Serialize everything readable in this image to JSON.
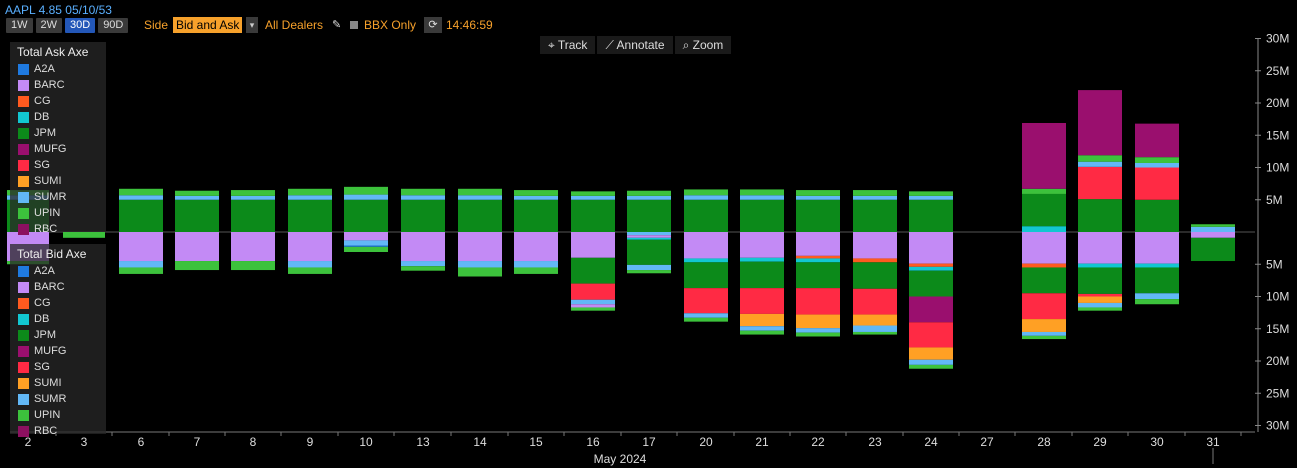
{
  "header": {
    "security": "AAPL 4.85 05/10/53",
    "periods": [
      "1W",
      "2W",
      "30D",
      "90D"
    ],
    "active_period": "30D",
    "side_label": "Side",
    "side_value": "Bid and Ask",
    "dealers_label": "All Dealers",
    "bbx_label": "BBX Only",
    "time": "14:46:59"
  },
  "toolbar": {
    "track": "Track",
    "annotate": "Annotate",
    "zoom": "Zoom"
  },
  "icons": {
    "pencil": "pencil-icon",
    "refresh": "refresh-icon",
    "track": "crosshair-icon",
    "annotate": "pencil-icon",
    "zoom": "magnifier-icon",
    "dropdown": "chevron-down-icon"
  },
  "colors": {
    "A2A": "#1f7ae0",
    "BARC": "#c38af5",
    "CG": "#ff5a1f",
    "DB": "#12c7d1",
    "JPM": "#0c8a1a",
    "MUFG": "#9a0f6e",
    "SG": "#ff2a44",
    "SUMI": "#ffa024",
    "SUMR": "#62b8f6",
    "UPIN": "#3cc23c",
    "RBC": "#8c1060"
  },
  "chart_data": {
    "type": "bar",
    "stacked": true,
    "xlabel": "May 2024",
    "x_ticks": [
      "2",
      "3",
      "6",
      "7",
      "8",
      "9",
      "10",
      "13",
      "14",
      "15",
      "16",
      "17",
      "20",
      "21",
      "22",
      "23",
      "24",
      "27",
      "28",
      "29",
      "30",
      "31"
    ],
    "y_ticks": [
      "30M",
      "25M",
      "20M",
      "15M",
      "10M",
      "5M",
      "5M",
      "10M",
      "15M",
      "20M",
      "25M",
      "30M"
    ],
    "ylim": [
      -30,
      30
    ],
    "units": "M",
    "legend_top": {
      "title": "Total Ask Axe",
      "entries": [
        "A2A",
        "BARC",
        "CG",
        "DB",
        "JPM",
        "MUFG",
        "SG",
        "SUMI",
        "SUMR",
        "UPIN",
        "RBC"
      ]
    },
    "legend_bottom": {
      "title": "Total Bid Axe",
      "entries": [
        "A2A",
        "BARC",
        "CG",
        "DB",
        "JPM",
        "MUFG",
        "SG",
        "SUMI",
        "SUMR",
        "UPIN",
        "RBC"
      ]
    },
    "ask_series": [
      {
        "date": "2",
        "segments": [
          [
            "JPM",
            5.0
          ],
          [
            "SUMR",
            0.7
          ],
          [
            "UPIN",
            0.8
          ]
        ]
      },
      {
        "date": "3",
        "segments": []
      },
      {
        "date": "6",
        "segments": [
          [
            "JPM",
            5.0
          ],
          [
            "SUMR",
            0.7
          ],
          [
            "UPIN",
            1.0
          ]
        ]
      },
      {
        "date": "7",
        "segments": [
          [
            "JPM",
            5.0
          ],
          [
            "SUMR",
            0.6
          ],
          [
            "UPIN",
            0.8
          ]
        ]
      },
      {
        "date": "8",
        "segments": [
          [
            "JPM",
            5.0
          ],
          [
            "SUMR",
            0.6
          ],
          [
            "UPIN",
            0.9
          ]
        ]
      },
      {
        "date": "9",
        "segments": [
          [
            "JPM",
            5.0
          ],
          [
            "SUMR",
            0.7
          ],
          [
            "UPIN",
            1.0
          ]
        ]
      },
      {
        "date": "10",
        "segments": [
          [
            "JPM",
            5.0
          ],
          [
            "SUMR",
            0.8
          ],
          [
            "UPIN",
            1.2
          ]
        ]
      },
      {
        "date": "13",
        "segments": [
          [
            "JPM",
            5.0
          ],
          [
            "SUMR",
            0.7
          ],
          [
            "UPIN",
            1.0
          ]
        ]
      },
      {
        "date": "14",
        "segments": [
          [
            "JPM",
            5.0
          ],
          [
            "SUMR",
            0.7
          ],
          [
            "UPIN",
            1.0
          ]
        ]
      },
      {
        "date": "15",
        "segments": [
          [
            "JPM",
            5.0
          ],
          [
            "SUMR",
            0.6
          ],
          [
            "UPIN",
            0.9
          ]
        ]
      },
      {
        "date": "16",
        "segments": [
          [
            "JPM",
            5.0
          ],
          [
            "SUMR",
            0.6
          ],
          [
            "UPIN",
            0.7
          ]
        ]
      },
      {
        "date": "17",
        "segments": [
          [
            "JPM",
            5.0
          ],
          [
            "SUMR",
            0.6
          ],
          [
            "UPIN",
            0.8
          ]
        ]
      },
      {
        "date": "20",
        "segments": [
          [
            "JPM",
            5.0
          ],
          [
            "SUMR",
            0.7
          ],
          [
            "UPIN",
            0.9
          ]
        ]
      },
      {
        "date": "21",
        "segments": [
          [
            "JPM",
            5.0
          ],
          [
            "SUMR",
            0.7
          ],
          [
            "UPIN",
            0.9
          ]
        ]
      },
      {
        "date": "22",
        "segments": [
          [
            "JPM",
            5.0
          ],
          [
            "SUMR",
            0.6
          ],
          [
            "UPIN",
            0.9
          ]
        ]
      },
      {
        "date": "23",
        "segments": [
          [
            "JPM",
            5.0
          ],
          [
            "SUMR",
            0.6
          ],
          [
            "UPIN",
            0.9
          ]
        ]
      },
      {
        "date": "24",
        "segments": [
          [
            "JPM",
            5.0
          ],
          [
            "SUMR",
            0.6
          ],
          [
            "UPIN",
            0.7
          ]
        ]
      },
      {
        "date": "27",
        "segments": []
      },
      {
        "date": "28",
        "segments": [
          [
            "DB",
            0.9
          ],
          [
            "JPM",
            5.0
          ],
          [
            "UPIN",
            0.8
          ],
          [
            "MUFG",
            10.2
          ]
        ]
      },
      {
        "date": "29",
        "segments": [
          [
            "JPM",
            5.1
          ],
          [
            "SG",
            5.0
          ],
          [
            "SUMR",
            0.8
          ],
          [
            "UPIN",
            1.0
          ],
          [
            "MUFG",
            10.1
          ]
        ]
      },
      {
        "date": "30",
        "segments": [
          [
            "JPM",
            5.0
          ],
          [
            "SG",
            5.0
          ],
          [
            "SUMR",
            0.7
          ],
          [
            "UPIN",
            0.9
          ],
          [
            "MUFG",
            5.2
          ]
        ]
      },
      {
        "date": "31",
        "segments": [
          [
            "SUMR",
            0.8
          ],
          [
            "UPIN",
            0.4
          ]
        ]
      }
    ],
    "bid_series": [
      {
        "date": "2",
        "segments": [
          [
            "BARC",
            4.5
          ],
          [
            "UPIN",
            0.5
          ]
        ]
      },
      {
        "date": "3",
        "segments": [
          [
            "UPIN",
            0.9
          ]
        ]
      },
      {
        "date": "6",
        "segments": [
          [
            "BARC",
            4.5
          ],
          [
            "SUMR",
            1.0
          ],
          [
            "UPIN",
            1.0
          ]
        ]
      },
      {
        "date": "7",
        "segments": [
          [
            "BARC",
            4.5
          ],
          [
            "UPIN",
            1.4
          ]
        ]
      },
      {
        "date": "8",
        "segments": [
          [
            "BARC",
            4.5
          ],
          [
            "UPIN",
            1.4
          ]
        ]
      },
      {
        "date": "9",
        "segments": [
          [
            "BARC",
            4.5
          ],
          [
            "SUMR",
            1.0
          ],
          [
            "UPIN",
            1.0
          ]
        ]
      },
      {
        "date": "10",
        "segments": [
          [
            "BARC",
            1.3
          ],
          [
            "SUMR",
            0.8
          ],
          [
            "A2A",
            0.2
          ],
          [
            "UPIN",
            0.8
          ]
        ]
      },
      {
        "date": "13",
        "segments": [
          [
            "BARC",
            4.5
          ],
          [
            "SUMR",
            0.8
          ],
          [
            "UPIN",
            0.7
          ]
        ]
      },
      {
        "date": "14",
        "segments": [
          [
            "BARC",
            4.5
          ],
          [
            "SUMR",
            1.0
          ],
          [
            "UPIN",
            1.4
          ]
        ]
      },
      {
        "date": "15",
        "segments": [
          [
            "BARC",
            4.5
          ],
          [
            "SUMR",
            1.0
          ],
          [
            "UPIN",
            1.0
          ]
        ]
      },
      {
        "date": "16",
        "segments": [
          [
            "BARC",
            4.0
          ],
          [
            "JPM",
            4.0
          ],
          [
            "SG",
            2.5
          ],
          [
            "SUMR",
            0.7
          ],
          [
            "BARC",
            0.5
          ],
          [
            "UPIN",
            0.5
          ]
        ]
      },
      {
        "date": "17",
        "segments": [
          [
            "SUMR",
            0.5
          ],
          [
            "BARC",
            0.4
          ],
          [
            "DB",
            0.3
          ],
          [
            "JPM",
            3.9
          ],
          [
            "SUMR",
            0.8
          ],
          [
            "UPIN",
            0.5
          ]
        ]
      },
      {
        "date": "20",
        "segments": [
          [
            "BARC",
            4.1
          ],
          [
            "DB",
            0.6
          ],
          [
            "JPM",
            4.0
          ],
          [
            "SG",
            3.9
          ],
          [
            "SUMR",
            0.7
          ],
          [
            "UPIN",
            0.6
          ]
        ]
      },
      {
        "date": "21",
        "segments": [
          [
            "BARC",
            4.0
          ],
          [
            "DB",
            0.6
          ],
          [
            "JPM",
            4.1
          ],
          [
            "SG",
            4.0
          ],
          [
            "SUMI",
            1.9
          ],
          [
            "SUMR",
            0.7
          ],
          [
            "UPIN",
            0.6
          ]
        ]
      },
      {
        "date": "22",
        "segments": [
          [
            "BARC",
            3.7
          ],
          [
            "CG",
            0.4
          ],
          [
            "DB",
            0.6
          ],
          [
            "JPM",
            4.0
          ],
          [
            "SG",
            4.1
          ],
          [
            "SUMI",
            2.1
          ],
          [
            "SUMR",
            0.7
          ],
          [
            "UPIN",
            0.6
          ]
        ]
      },
      {
        "date": "23",
        "segments": [
          [
            "BARC",
            4.1
          ],
          [
            "CG",
            0.6
          ],
          [
            "JPM",
            4.1
          ],
          [
            "SG",
            4.0
          ],
          [
            "SUMI",
            1.7
          ],
          [
            "SUMR",
            1.0
          ],
          [
            "UPIN",
            0.4
          ]
        ]
      },
      {
        "date": "24",
        "segments": [
          [
            "BARC",
            4.9
          ],
          [
            "CG",
            0.5
          ],
          [
            "DB",
            0.6
          ],
          [
            "JPM",
            4.0
          ],
          [
            "MUFG",
            4.0
          ],
          [
            "SG",
            3.9
          ],
          [
            "SUMI",
            1.9
          ],
          [
            "SUMR",
            0.8
          ],
          [
            "UPIN",
            0.6
          ]
        ]
      },
      {
        "date": "27",
        "segments": []
      },
      {
        "date": "28",
        "segments": [
          [
            "BARC",
            4.9
          ],
          [
            "CG",
            0.6
          ],
          [
            "JPM",
            4.0
          ],
          [
            "SG",
            4.0
          ],
          [
            "SUMI",
            2.0
          ],
          [
            "SUMR",
            0.6
          ],
          [
            "UPIN",
            0.5
          ]
        ]
      },
      {
        "date": "29",
        "segments": [
          [
            "BARC",
            4.9
          ],
          [
            "DB",
            0.6
          ],
          [
            "JPM",
            4.1
          ],
          [
            "SG",
            0.4
          ],
          [
            "SUMI",
            1.0
          ],
          [
            "SUMR",
            0.7
          ],
          [
            "UPIN",
            0.5
          ]
        ]
      },
      {
        "date": "30",
        "segments": [
          [
            "BARC",
            4.9
          ],
          [
            "DB",
            0.6
          ],
          [
            "JPM",
            4.0
          ],
          [
            "SUMR",
            0.9
          ],
          [
            "UPIN",
            0.8
          ]
        ]
      },
      {
        "date": "31",
        "segments": [
          [
            "BARC",
            0.9
          ],
          [
            "JPM",
            3.6
          ]
        ]
      }
    ]
  }
}
